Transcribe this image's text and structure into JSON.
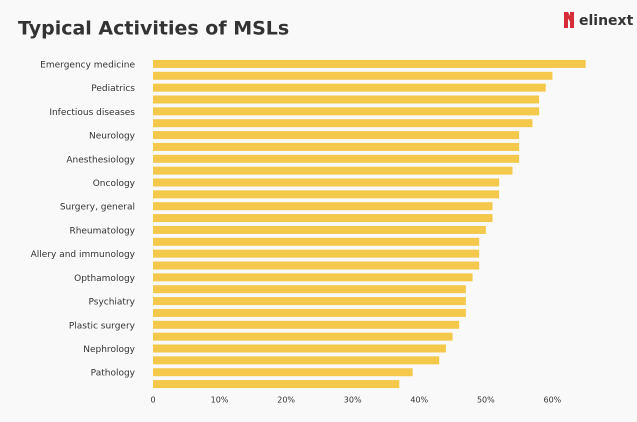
{
  "logo": "elinext",
  "chart_data": {
    "type": "hbar",
    "title": "Typical Activities of MSLs",
    "categories": [
      "Emergency medicine",
      null,
      "Pediatrics",
      null,
      "Infectious diseases",
      null,
      "Neurology",
      null,
      "Anesthesiology",
      null,
      "Oncology",
      null,
      "Surgery, general",
      null,
      "Rheumatology",
      null,
      "Allery and immunology",
      null,
      "Opthamology",
      null,
      "Psychiatry",
      null,
      "Plastic surgery",
      null,
      "Nephrology",
      null,
      "Pathology",
      null
    ],
    "values": [
      65,
      60,
      59,
      58,
      58,
      57,
      55,
      55,
      55,
      54,
      52,
      52,
      51,
      51,
      50,
      49,
      49,
      49,
      48,
      47,
      47,
      47,
      46,
      45,
      44,
      43,
      39,
      37
    ],
    "color": "#f4c84a",
    "xlim": [
      0,
      67
    ],
    "xticks": [
      0,
      {
        "value": 10,
        "label": "10%"
      },
      {
        "value": 20,
        "label": "20%"
      },
      {
        "value": 30,
        "label": "30%"
      },
      {
        "value": 40,
        "label": "40%"
      },
      {
        "value": 50,
        "label": "50%"
      },
      {
        "value": 60,
        "label": "60%"
      }
    ],
    "grid": false
  }
}
